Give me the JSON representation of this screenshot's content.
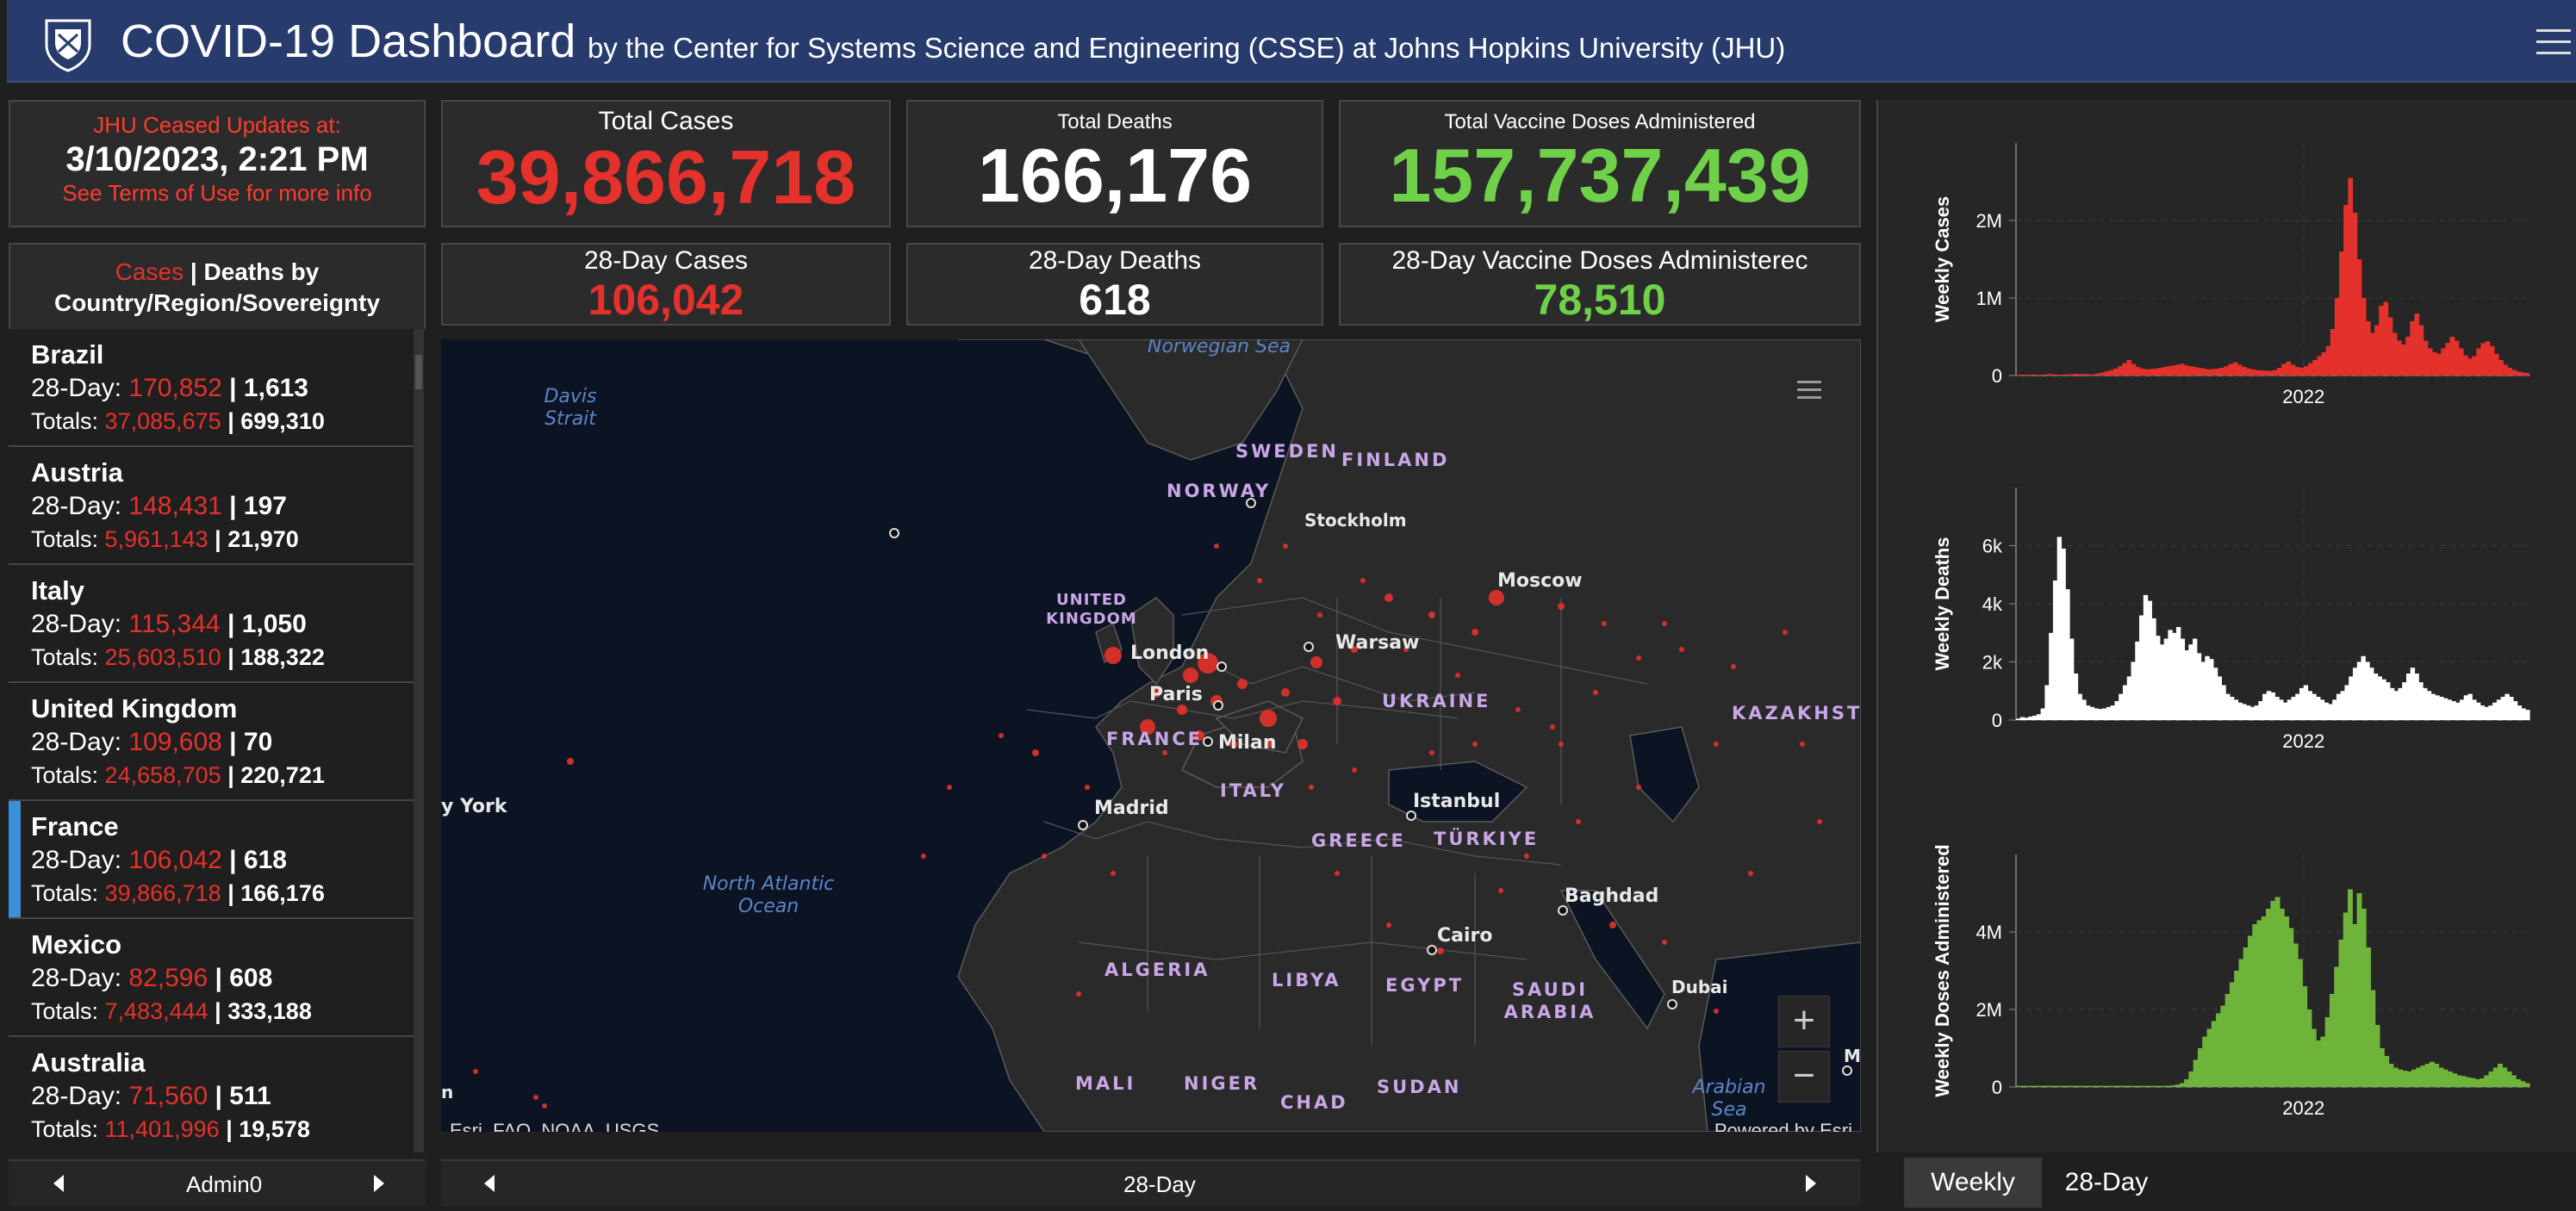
{
  "header": {
    "title": "COVID-19 Dashboard",
    "subtitle": "by the Center for Systems Science and Engineering (CSSE) at Johns Hopkins University (JHU)"
  },
  "status": {
    "line1": "JHU Ceased Updates at:",
    "line2": "3/10/2023, 2:21 PM",
    "line3": "See Terms of Use for more info"
  },
  "totals": {
    "cases_label": "Total Cases",
    "cases_value": "39,866,718",
    "deaths_label": "Total Deaths",
    "deaths_value": "166,176",
    "vaccine_label": "Total Vaccine Doses Administered",
    "vaccine_value": "157,737,439"
  },
  "period": {
    "cases_label": "28-Day Cases",
    "cases_value": "106,042",
    "deaths_label": "28-Day Deaths",
    "deaths_value": "618",
    "vaccine_label": "28-Day Vaccine Doses Administerec",
    "vaccine_value": "78,510"
  },
  "list": {
    "head_cases": "Cases",
    "head_rest": " | Deaths by",
    "head_line2": "Country/Region/Sovereignty",
    "day_prefix": "28-Day: ",
    "total_prefix": "Totals: ",
    "sep": " | ",
    "countries": [
      {
        "name": "Brazil",
        "d_cases": "170,852",
        "d_deaths": "1,613",
        "t_cases": "37,085,675",
        "t_deaths": "699,310"
      },
      {
        "name": "Austria",
        "d_cases": "148,431",
        "d_deaths": "197",
        "t_cases": "5,961,143",
        "t_deaths": "21,970"
      },
      {
        "name": "Italy",
        "d_cases": "115,344",
        "d_deaths": "1,050",
        "t_cases": "25,603,510",
        "t_deaths": "188,322"
      },
      {
        "name": "United Kingdom",
        "d_cases": "109,608",
        "d_deaths": "70",
        "t_cases": "24,658,705",
        "t_deaths": "220,721"
      },
      {
        "name": "France",
        "d_cases": "106,042",
        "d_deaths": "618",
        "t_cases": "39,866,718",
        "t_deaths": "166,176"
      },
      {
        "name": "Mexico",
        "d_cases": "82,596",
        "d_deaths": "608",
        "t_cases": "7,483,444",
        "t_deaths": "333,188"
      },
      {
        "name": "Australia",
        "d_cases": "71,560",
        "d_deaths": "511",
        "t_cases": "11,401,996",
        "t_deaths": "19,578"
      }
    ],
    "selected": "France"
  },
  "footer": {
    "left_label": "Admin0",
    "map_label": "28-Day",
    "tab_weekly": "Weekly",
    "tab_28day": "28-Day",
    "active_tab": "Weekly"
  },
  "map": {
    "seas": [
      "Norwegian Sea",
      "Davis Strait",
      "North Atlantic Ocean",
      "Arabian Sea"
    ],
    "countries": [
      "SWEDEN",
      "FINLAND",
      "NORWAY",
      "UNITED KINGDOM",
      "UKRAINE",
      "FRANCE",
      "ITALY",
      "GREECE",
      "TÜRKIYE",
      "KAZAKHST",
      "ALGERIA",
      "LIBYA",
      "EGYPT",
      "SAUDI ARABIA",
      "MALI",
      "NIGER",
      "CHAD",
      "SUDAN"
    ],
    "cities": [
      "Stockholm",
      "Moscow",
      "London",
      "Warsaw",
      "Paris",
      "Milan",
      "Madrid",
      "Istanbul",
      "Baghdad",
      "Cairo",
      "Dubai",
      "y York",
      "M",
      "n"
    ],
    "attribution": "Esri, FAO, NOAA, USGS",
    "powered": "Powered by Esri",
    "colors": {
      "ocean": "#0c1424",
      "land": "#2a2a2a",
      "border": "#6a6a6a",
      "dot": "#e4312b"
    }
  },
  "chart_data": [
    {
      "type": "bar",
      "ylabel": "Weekly Cases",
      "xtick": "2022",
      "yticks": [
        "0",
        "1M",
        "2M"
      ],
      "ylim": [
        0,
        3000000
      ],
      "color": "#e4312b",
      "values": [
        0,
        0,
        0,
        0,
        0,
        0,
        10000,
        20000,
        15000,
        12000,
        10000,
        15000,
        18000,
        22000,
        20000,
        18000,
        16000,
        15000,
        25000,
        40000,
        55000,
        70000,
        90000,
        120000,
        160000,
        200000,
        150000,
        110000,
        90000,
        80000,
        85000,
        90000,
        100000,
        110000,
        120000,
        130000,
        140000,
        150000,
        130000,
        120000,
        110000,
        100000,
        90000,
        80000,
        85000,
        90000,
        100000,
        120000,
        150000,
        170000,
        140000,
        110000,
        90000,
        80000,
        70000,
        65000,
        60000,
        60000,
        70000,
        100000,
        150000,
        180000,
        140000,
        110000,
        100000,
        120000,
        160000,
        200000,
        250000,
        300000,
        380000,
        600000,
        1000000,
        1600000,
        2200000,
        2550000,
        2100000,
        1500000,
        1000000,
        700000,
        550000,
        650000,
        900000,
        950000,
        750000,
        550000,
        450000,
        400000,
        500000,
        700000,
        800000,
        650000,
        450000,
        350000,
        300000,
        280000,
        350000,
        420000,
        500000,
        450000,
        350000,
        260000,
        220000,
        250000,
        350000,
        420000,
        440000,
        380000,
        280000,
        200000,
        140000,
        100000,
        70000,
        50000,
        40000,
        30000
      ]
    },
    {
      "type": "bar",
      "ylabel": "Weekly Deaths",
      "xtick": "2022",
      "yticks": [
        "0",
        "2k",
        "4k",
        "6k"
      ],
      "ylim": [
        0,
        8000
      ],
      "color": "#ffffff",
      "values": [
        50,
        100,
        80,
        120,
        150,
        200,
        400,
        1200,
        3000,
        4800,
        6300,
        5900,
        4500,
        2800,
        1600,
        900,
        700,
        500,
        450,
        400,
        380,
        400,
        450,
        500,
        650,
        900,
        1200,
        1500,
        2000,
        2700,
        3600,
        4300,
        4100,
        3500,
        2900,
        2600,
        2800,
        3100,
        3000,
        3200,
        2800,
        2400,
        2600,
        2800,
        2300,
        2000,
        2200,
        2100,
        1800,
        1500,
        1200,
        900,
        800,
        700,
        600,
        550,
        500,
        450,
        500,
        650,
        900,
        1000,
        950,
        800,
        700,
        600,
        700,
        800,
        900,
        1100,
        1200,
        1000,
        900,
        800,
        700,
        600,
        550,
        700,
        900,
        1000,
        1200,
        1500,
        1800,
        2000,
        2200,
        2000,
        1800,
        1600,
        1500,
        1400,
        1300,
        1100,
        1000,
        1100,
        1300,
        1600,
        1800,
        1600,
        1300,
        1100,
        1000,
        900,
        850,
        800,
        750,
        700,
        650,
        600,
        700,
        850,
        900,
        700,
        600,
        500,
        450,
        500,
        600,
        700,
        800,
        900,
        800,
        650,
        500,
        400,
        350
      ]
    },
    {
      "type": "bar",
      "ylabel": "Weekly Doses Administered",
      "xtick": "2022",
      "yticks": [
        "0",
        "2M",
        "4M"
      ],
      "ylim": [
        0,
        6000000
      ],
      "color": "#6fb43a",
      "values": [
        30000,
        30000,
        30000,
        30000,
        30000,
        30000,
        30000,
        30000,
        30000,
        30000,
        30000,
        30000,
        30000,
        30000,
        30000,
        30000,
        30000,
        30000,
        30000,
        30000,
        30000,
        30000,
        30000,
        30000,
        30000,
        30000,
        30000,
        30000,
        30000,
        30000,
        30000,
        30000,
        30000,
        30000,
        40000,
        60000,
        100000,
        200000,
        400000,
        700000,
        1000000,
        1300000,
        1500000,
        1700000,
        1900000,
        2100000,
        2400000,
        2700000,
        3000000,
        3300000,
        3600000,
        3900000,
        4200000,
        4300000,
        4400000,
        4600000,
        4800000,
        4900000,
        4600000,
        4400000,
        4100000,
        3700000,
        3300000,
        2600000,
        2000000,
        1500000,
        1200000,
        1300000,
        1800000,
        2400000,
        3100000,
        3800000,
        4500000,
        5100000,
        4200000,
        5000000,
        4600000,
        3600000,
        2500000,
        1600000,
        1000000,
        800000,
        600000,
        500000,
        450000,
        420000,
        400000,
        450000,
        500000,
        550000,
        600000,
        650000,
        600000,
        500000,
        450000,
        400000,
        350000,
        300000,
        280000,
        250000,
        230000,
        200000,
        220000,
        300000,
        400000,
        500000,
        600000,
        500000,
        400000,
        300000,
        200000,
        150000,
        100000
      ]
    }
  ]
}
